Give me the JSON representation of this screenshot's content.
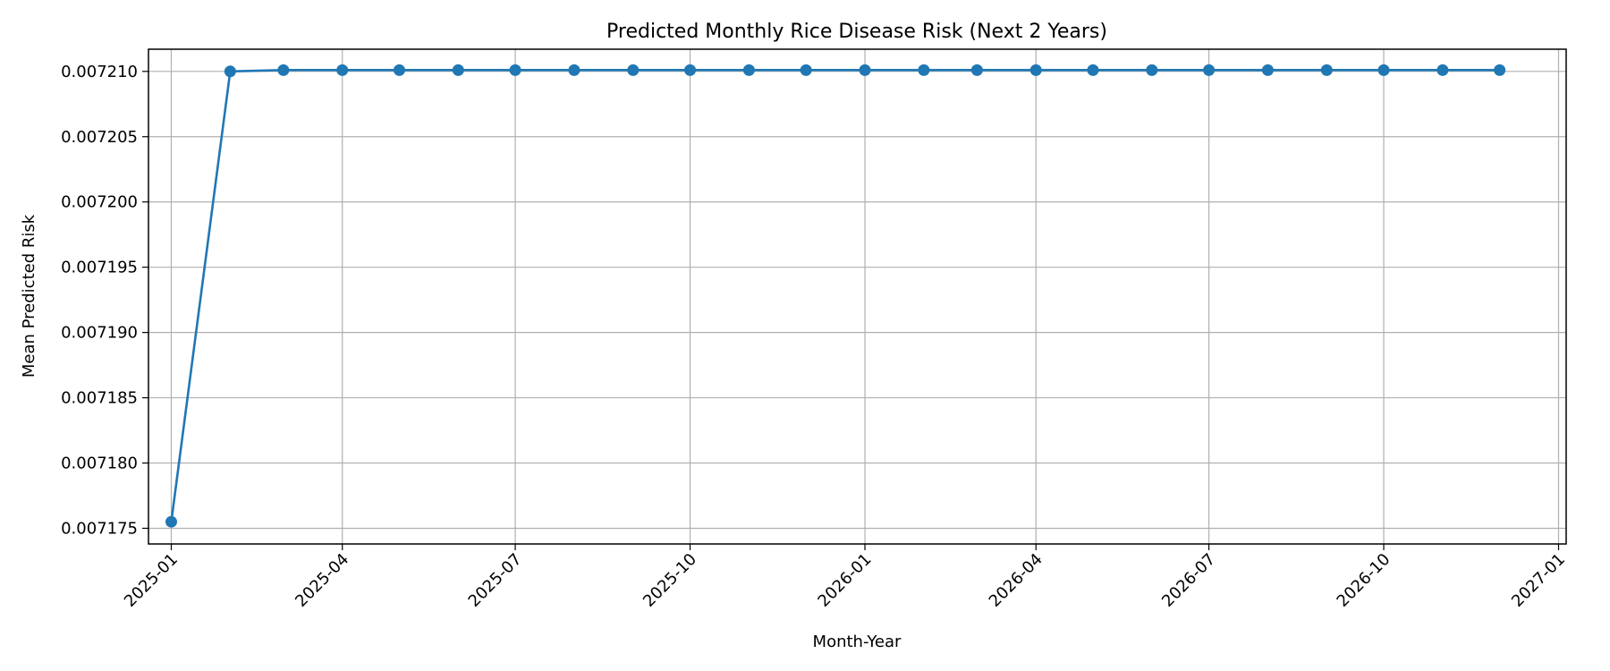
{
  "chart_data": {
    "type": "line",
    "title": "Predicted Monthly Rice Disease Risk (Next 2 Years)",
    "xlabel": "Month-Year",
    "ylabel": "Mean Predicted Risk",
    "x_axis": {
      "kind": "date",
      "range": [
        "2024-12-20",
        "2027-01-05"
      ],
      "ticks": [
        "2025-01",
        "2025-04",
        "2025-07",
        "2025-10",
        "2026-01",
        "2026-04",
        "2026-07",
        "2026-10",
        "2027-01"
      ],
      "tick_label_rotation_deg": 45
    },
    "y_axis": {
      "range": [
        0.0071738,
        0.0072117
      ],
      "ticks": [
        0.007175,
        0.00718,
        0.007185,
        0.00719,
        0.007195,
        0.0072,
        0.007205,
        0.00721
      ],
      "tick_labels": [
        "0.007175",
        "0.007180",
        "0.007185",
        "0.007190",
        "0.007195",
        "0.007200",
        "0.007205",
        "0.007210"
      ]
    },
    "grid": true,
    "series": [
      {
        "color": "#1f77b4",
        "marker": "circle",
        "points": [
          {
            "x": "2025-01-01",
            "y": 0.0071755
          },
          {
            "x": "2025-02-01",
            "y": 0.00721
          },
          {
            "x": "2025-03-01",
            "y": 0.0072101
          },
          {
            "x": "2025-04-01",
            "y": 0.0072101
          },
          {
            "x": "2025-05-01",
            "y": 0.0072101
          },
          {
            "x": "2025-06-01",
            "y": 0.0072101
          },
          {
            "x": "2025-07-01",
            "y": 0.0072101
          },
          {
            "x": "2025-08-01",
            "y": 0.0072101
          },
          {
            "x": "2025-09-01",
            "y": 0.0072101
          },
          {
            "x": "2025-10-01",
            "y": 0.0072101
          },
          {
            "x": "2025-11-01",
            "y": 0.0072101
          },
          {
            "x": "2025-12-01",
            "y": 0.0072101
          },
          {
            "x": "2026-01-01",
            "y": 0.0072101
          },
          {
            "x": "2026-02-01",
            "y": 0.0072101
          },
          {
            "x": "2026-03-01",
            "y": 0.0072101
          },
          {
            "x": "2026-04-01",
            "y": 0.0072101
          },
          {
            "x": "2026-05-01",
            "y": 0.0072101
          },
          {
            "x": "2026-06-01",
            "y": 0.0072101
          },
          {
            "x": "2026-07-01",
            "y": 0.0072101
          },
          {
            "x": "2026-08-01",
            "y": 0.0072101
          },
          {
            "x": "2026-09-01",
            "y": 0.0072101
          },
          {
            "x": "2026-10-01",
            "y": 0.0072101
          },
          {
            "x": "2026-11-01",
            "y": 0.0072101
          },
          {
            "x": "2026-12-01",
            "y": 0.0072101
          }
        ]
      }
    ]
  }
}
